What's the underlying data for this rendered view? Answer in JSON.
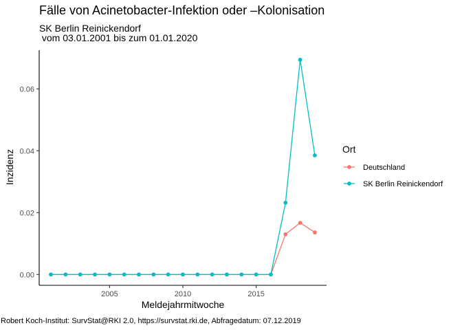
{
  "chart_data": {
    "type": "line",
    "title": "Fälle von Acinetobacter-Infektion oder –Kolonisation",
    "subtitle_line1": "SK Berlin Reinickendorf",
    "subtitle_line2": " vom 03.01.2001 bis zum 01.01.2020",
    "xlabel": "Meldejahrmitwoche",
    "ylabel": "Inzidenz",
    "caption": "Robert Koch-Institut: SurvStat@RKI 2.0, https://survstat.rki.de, Abfragedatum: 07.12.2019",
    "xlim": [
      2000.2,
      2019.8
    ],
    "ylim": [
      -0.0035,
      0.0725
    ],
    "x_ticks": [
      2005,
      2010,
      2015
    ],
    "x_tick_labels": [
      "2005",
      "2010",
      "2015"
    ],
    "y_ticks": [
      0,
      0.02,
      0.04,
      0.06
    ],
    "y_tick_labels": [
      "0.00",
      "0.02",
      "0.04",
      "0.06"
    ],
    "grid": false,
    "legend": {
      "title": "Ort",
      "placement": "right",
      "entries": [
        "Deutschland",
        "SK Berlin Reinickendorf"
      ]
    },
    "series": [
      {
        "name": "Deutschland",
        "color": "#F8766D",
        "x": [
          2001,
          2002,
          2003,
          2004,
          2005,
          2006,
          2007,
          2008,
          2009,
          2010,
          2011,
          2012,
          2013,
          2014,
          2015,
          2016,
          2017,
          2018,
          2019
        ],
        "y": [
          0,
          0,
          0,
          0,
          0,
          0,
          0,
          0,
          0,
          0,
          0,
          0,
          0,
          0,
          0,
          0,
          0.013,
          0.0167,
          0.0136
        ]
      },
      {
        "name": "SK Berlin Reinickendorf",
        "color": "#00BFC4",
        "x": [
          2001,
          2002,
          2003,
          2004,
          2005,
          2006,
          2007,
          2008,
          2009,
          2010,
          2011,
          2012,
          2013,
          2014,
          2015,
          2016,
          2017,
          2018,
          2019
        ],
        "y": [
          0,
          0,
          0,
          0,
          0,
          0,
          0,
          0,
          0,
          0,
          0,
          0,
          0,
          0,
          0,
          0,
          0.0232,
          0.0694,
          0.0385
        ]
      }
    ]
  }
}
